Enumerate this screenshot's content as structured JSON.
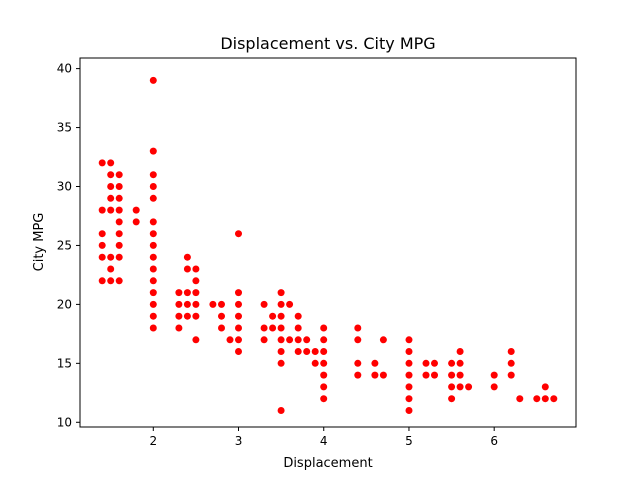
{
  "chart_data": {
    "type": "scatter",
    "title": "Displacement vs. City MPG",
    "xlabel": "Displacement",
    "ylabel": "City MPG",
    "xlim": [
      1.14,
      6.96
    ],
    "ylim": [
      9.6,
      40.9
    ],
    "xticks": [
      2,
      3,
      4,
      5,
      6
    ],
    "yticks": [
      10,
      15,
      20,
      25,
      30,
      35,
      40
    ],
    "grid": false,
    "marker_color": "#ff0000",
    "points": [
      [
        1.4,
        22
      ],
      [
        1.4,
        24
      ],
      [
        1.4,
        25
      ],
      [
        1.4,
        26
      ],
      [
        1.4,
        28
      ],
      [
        1.4,
        32
      ],
      [
        1.5,
        22
      ],
      [
        1.5,
        23
      ],
      [
        1.5,
        24
      ],
      [
        1.5,
        28
      ],
      [
        1.5,
        29
      ],
      [
        1.5,
        30
      ],
      [
        1.5,
        31
      ],
      [
        1.5,
        32
      ],
      [
        1.6,
        22
      ],
      [
        1.6,
        24
      ],
      [
        1.6,
        25
      ],
      [
        1.6,
        26
      ],
      [
        1.6,
        27
      ],
      [
        1.6,
        28
      ],
      [
        1.6,
        29
      ],
      [
        1.6,
        30
      ],
      [
        1.6,
        31
      ],
      [
        1.8,
        27
      ],
      [
        1.8,
        28
      ],
      [
        2.0,
        18
      ],
      [
        2.0,
        19
      ],
      [
        2.0,
        20
      ],
      [
        2.0,
        21
      ],
      [
        2.0,
        22
      ],
      [
        2.0,
        23
      ],
      [
        2.0,
        24
      ],
      [
        2.0,
        25
      ],
      [
        2.0,
        26
      ],
      [
        2.0,
        27
      ],
      [
        2.0,
        29
      ],
      [
        2.0,
        30
      ],
      [
        2.0,
        31
      ],
      [
        2.0,
        33
      ],
      [
        2.0,
        39
      ],
      [
        2.3,
        18
      ],
      [
        2.3,
        19
      ],
      [
        2.3,
        20
      ],
      [
        2.3,
        21
      ],
      [
        2.4,
        19
      ],
      [
        2.4,
        20
      ],
      [
        2.4,
        21
      ],
      [
        2.4,
        23
      ],
      [
        2.4,
        24
      ],
      [
        2.5,
        17
      ],
      [
        2.5,
        19
      ],
      [
        2.5,
        20
      ],
      [
        2.5,
        21
      ],
      [
        2.5,
        22
      ],
      [
        2.5,
        23
      ],
      [
        2.7,
        20
      ],
      [
        2.8,
        18
      ],
      [
        2.8,
        19
      ],
      [
        2.8,
        20
      ],
      [
        2.9,
        17
      ],
      [
        3.0,
        16
      ],
      [
        3.0,
        17
      ],
      [
        3.0,
        18
      ],
      [
        3.0,
        19
      ],
      [
        3.0,
        20
      ],
      [
        3.0,
        21
      ],
      [
        3.0,
        26
      ],
      [
        3.3,
        17
      ],
      [
        3.3,
        18
      ],
      [
        3.3,
        20
      ],
      [
        3.4,
        18
      ],
      [
        3.4,
        19
      ],
      [
        3.5,
        15
      ],
      [
        3.5,
        16
      ],
      [
        3.5,
        17
      ],
      [
        3.5,
        18
      ],
      [
        3.5,
        19
      ],
      [
        3.5,
        20
      ],
      [
        3.5,
        21
      ],
      [
        3.5,
        11
      ],
      [
        3.6,
        17
      ],
      [
        3.6,
        20
      ],
      [
        3.7,
        16
      ],
      [
        3.7,
        17
      ],
      [
        3.7,
        18
      ],
      [
        3.7,
        19
      ],
      [
        3.8,
        16
      ],
      [
        3.8,
        17
      ],
      [
        3.9,
        15
      ],
      [
        3.9,
        16
      ],
      [
        4.0,
        12
      ],
      [
        4.0,
        13
      ],
      [
        4.0,
        14
      ],
      [
        4.0,
        15
      ],
      [
        4.0,
        16
      ],
      [
        4.0,
        17
      ],
      [
        4.0,
        18
      ],
      [
        4.4,
        14
      ],
      [
        4.4,
        15
      ],
      [
        4.4,
        17
      ],
      [
        4.4,
        18
      ],
      [
        4.6,
        14
      ],
      [
        4.6,
        15
      ],
      [
        4.7,
        14
      ],
      [
        4.7,
        17
      ],
      [
        5.0,
        11
      ],
      [
        5.0,
        12
      ],
      [
        5.0,
        13
      ],
      [
        5.0,
        14
      ],
      [
        5.0,
        15
      ],
      [
        5.0,
        16
      ],
      [
        5.0,
        17
      ],
      [
        5.2,
        14
      ],
      [
        5.2,
        15
      ],
      [
        5.3,
        14
      ],
      [
        5.3,
        15
      ],
      [
        5.5,
        12
      ],
      [
        5.5,
        13
      ],
      [
        5.5,
        14
      ],
      [
        5.5,
        15
      ],
      [
        5.6,
        13
      ],
      [
        5.6,
        14
      ],
      [
        5.6,
        15
      ],
      [
        5.6,
        16
      ],
      [
        5.7,
        13
      ],
      [
        6.0,
        13
      ],
      [
        6.0,
        14
      ],
      [
        6.2,
        14
      ],
      [
        6.2,
        15
      ],
      [
        6.2,
        16
      ],
      [
        6.3,
        12
      ],
      [
        6.5,
        12
      ],
      [
        6.6,
        12
      ],
      [
        6.6,
        13
      ],
      [
        6.7,
        12
      ]
    ]
  }
}
